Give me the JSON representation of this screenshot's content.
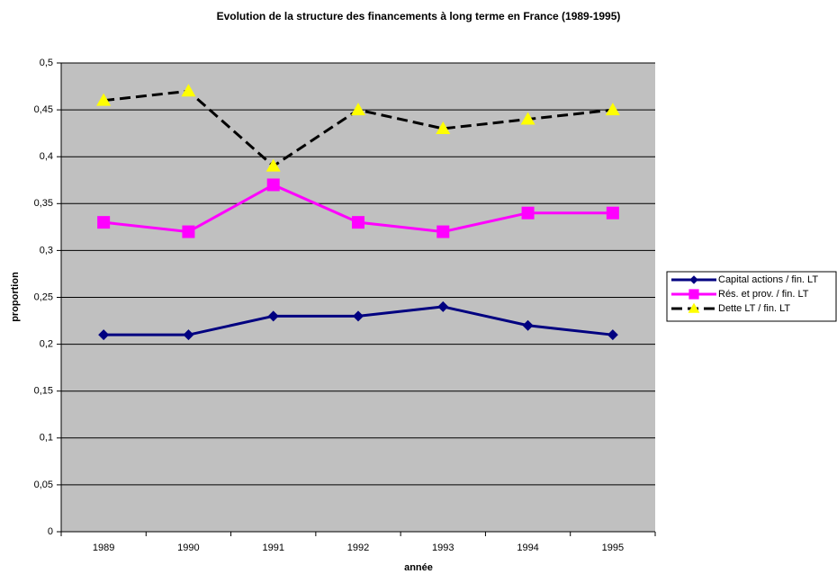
{
  "chart_data": {
    "type": "line",
    "title": "Evolution de la structure des financements à long terme en France (1989-1995)",
    "x_label": "année",
    "y_label": "proportion",
    "categories": [
      "1989",
      "1990",
      "1991",
      "1992",
      "1993",
      "1994",
      "1995"
    ],
    "series": [
      {
        "name": "Capital actions / fin. LT",
        "color": "#000080",
        "marker": "diamond",
        "dashed": false,
        "values": [
          0.21,
          0.21,
          0.23,
          0.23,
          0.24,
          0.22,
          0.21
        ]
      },
      {
        "name": "Rés. et prov. / fin. LT",
        "color": "#ff00ff",
        "marker": "square",
        "dashed": false,
        "values": [
          0.33,
          0.32,
          0.37,
          0.33,
          0.32,
          0.34,
          0.34
        ]
      },
      {
        "name": "Dette LT / fin. LT",
        "color": "#ffff00",
        "line_color": "#000000",
        "marker": "triangle",
        "dashed": true,
        "values": [
          0.46,
          0.47,
          0.39,
          0.45,
          0.43,
          0.44,
          0.45
        ]
      }
    ],
    "ylim": [
      0,
      0.5
    ],
    "yticks": [
      0,
      {
        "value": 0.05,
        "label": "0,05"
      },
      {
        "value": 0.1,
        "label": "0,1"
      },
      {
        "value": 0.15,
        "label": "0,15"
      },
      {
        "value": 0.2,
        "label": "0,2"
      },
      {
        "value": 0.25,
        "label": "0,25"
      },
      {
        "value": 0.3,
        "label": "0,3"
      },
      {
        "value": 0.35,
        "label": "0,35"
      },
      {
        "value": 0.4,
        "label": "0,4"
      },
      {
        "value": 0.45,
        "label": "0,45"
      },
      {
        "value": 0.5,
        "label": "0,5"
      }
    ],
    "grid": true,
    "legend": "right"
  }
}
